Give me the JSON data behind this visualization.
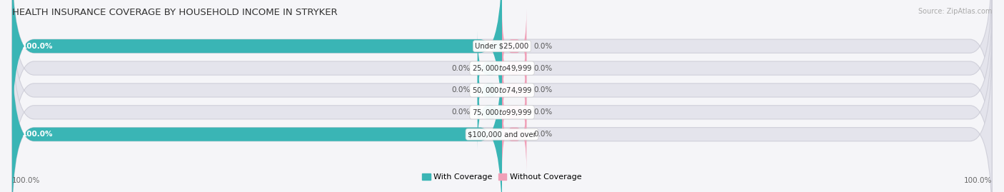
{
  "title": "HEALTH INSURANCE COVERAGE BY HOUSEHOLD INCOME IN STRYKER",
  "source": "Source: ZipAtlas.com",
  "categories": [
    "Under $25,000",
    "$25,000 to $49,999",
    "$50,000 to $74,999",
    "$75,000 to $99,999",
    "$100,000 and over"
  ],
  "with_coverage": [
    100.0,
    0.0,
    0.0,
    0.0,
    100.0
  ],
  "without_coverage": [
    0.0,
    0.0,
    0.0,
    0.0,
    0.0
  ],
  "color_with": "#3ab5b5",
  "color_without": "#f0a0b8",
  "bar_bg_color": "#e4e4ec",
  "bar_bg_edge": "#d0d0da",
  "fig_bg": "#f5f5f8",
  "title_fontsize": 9.5,
  "label_fontsize": 7.5,
  "source_fontsize": 7,
  "legend_fontsize": 8,
  "axis_label_left": "100.0%",
  "axis_label_right": "100.0%"
}
